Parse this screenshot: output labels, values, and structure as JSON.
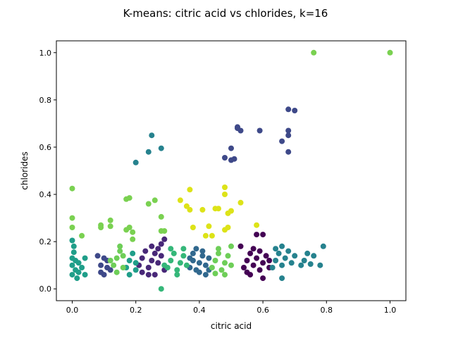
{
  "chart_data": {
    "type": "scatter",
    "title": "K-means: citric acid vs chlorides, k=16",
    "xlabel": "citric acid",
    "ylabel": "chlorides",
    "xlim": [
      -0.05,
      1.05
    ],
    "ylim": [
      -0.05,
      1.05
    ],
    "xticks": [
      "0.0",
      "0.2",
      "0.4",
      "0.6",
      "0.8",
      "1.0"
    ],
    "yticks": [
      "0.0",
      "0.2",
      "0.4",
      "0.6",
      "0.8",
      "1.0"
    ],
    "grid": false,
    "legend": "none",
    "series": [
      {
        "color": "#440154",
        "points": [
          [
            0.54,
            0.09
          ],
          [
            0.55,
            0.12
          ],
          [
            0.56,
            0.15
          ],
          [
            0.57,
            0.1
          ],
          [
            0.58,
            0.13
          ],
          [
            0.59,
            0.08
          ],
          [
            0.6,
            0.11
          ],
          [
            0.61,
            0.14
          ],
          [
            0.55,
            0.07
          ],
          [
            0.57,
            0.17
          ],
          [
            0.59,
            0.16
          ],
          [
            0.53,
            0.18
          ],
          [
            0.58,
            0.23
          ],
          [
            0.6,
            0.23
          ],
          [
            0.6,
            0.045
          ],
          [
            0.62,
            0.09
          ],
          [
            0.62,
            0.12
          ],
          [
            0.56,
            0.06
          ]
        ]
      },
      {
        "color": "#482878",
        "points": [
          [
            0.21,
            0.1
          ],
          [
            0.22,
            0.13
          ],
          [
            0.23,
            0.16
          ],
          [
            0.24,
            0.09
          ],
          [
            0.25,
            0.12
          ],
          [
            0.26,
            0.15
          ],
          [
            0.27,
            0.11
          ],
          [
            0.28,
            0.14
          ],
          [
            0.29,
            0.08
          ],
          [
            0.22,
            0.07
          ],
          [
            0.24,
            0.06
          ],
          [
            0.26,
            0.06
          ],
          [
            0.27,
            0.17
          ],
          [
            0.25,
            0.18
          ],
          [
            0.29,
            0.21
          ],
          [
            0.28,
            0.19
          ]
        ]
      },
      {
        "color": "#3e4989",
        "points": [
          [
            0.52,
            0.68
          ],
          [
            0.53,
            0.67
          ],
          [
            0.59,
            0.67
          ],
          [
            0.68,
            0.76
          ],
          [
            0.7,
            0.755
          ],
          [
            0.68,
            0.67
          ],
          [
            0.68,
            0.65
          ],
          [
            0.66,
            0.625
          ],
          [
            0.68,
            0.58
          ],
          [
            0.5,
            0.595
          ],
          [
            0.48,
            0.555
          ],
          [
            0.5,
            0.545
          ],
          [
            0.51,
            0.55
          ],
          [
            0.52,
            0.685
          ],
          [
            0.09,
            0.07
          ],
          [
            0.09,
            0.1
          ],
          [
            0.1,
            0.13
          ],
          [
            0.11,
            0.09
          ],
          [
            0.11,
            0.12
          ],
          [
            0.12,
            0.08
          ],
          [
            0.08,
            0.14
          ],
          [
            0.1,
            0.06
          ]
        ]
      },
      {
        "color": "#31688e",
        "points": [
          [
            0.37,
            0.09
          ],
          [
            0.38,
            0.12
          ],
          [
            0.39,
            0.08
          ],
          [
            0.4,
            0.11
          ],
          [
            0.41,
            0.14
          ],
          [
            0.42,
            0.1
          ],
          [
            0.43,
            0.13
          ],
          [
            0.38,
            0.15
          ],
          [
            0.4,
            0.07
          ],
          [
            0.42,
            0.06
          ],
          [
            0.41,
            0.16
          ],
          [
            0.39,
            0.17
          ],
          [
            0.43,
            0.08
          ],
          [
            0.37,
            0.13
          ]
        ]
      },
      {
        "color": "#26828e",
        "points": [
          [
            0.25,
            0.65
          ],
          [
            0.28,
            0.595
          ],
          [
            0.24,
            0.58
          ],
          [
            0.2,
            0.535
          ],
          [
            0.63,
            0.09
          ],
          [
            0.64,
            0.12
          ],
          [
            0.65,
            0.15
          ],
          [
            0.66,
            0.1
          ],
          [
            0.67,
            0.13
          ],
          [
            0.68,
            0.16
          ],
          [
            0.69,
            0.11
          ],
          [
            0.7,
            0.14
          ],
          [
            0.72,
            0.1
          ],
          [
            0.73,
            0.12
          ],
          [
            0.74,
            0.15
          ],
          [
            0.75,
            0.105
          ],
          [
            0.76,
            0.14
          ],
          [
            0.78,
            0.1
          ],
          [
            0.79,
            0.18
          ],
          [
            0.66,
            0.045
          ],
          [
            0.66,
            0.18
          ],
          [
            0.64,
            0.17
          ]
        ]
      },
      {
        "color": "#1f9e89",
        "points": [
          [
            0.0,
            0.1
          ],
          [
            0.0,
            0.06
          ],
          [
            0.0,
            0.13
          ],
          [
            0.01,
            0.08
          ],
          [
            0.01,
            0.12
          ],
          [
            0.02,
            0.07
          ],
          [
            0.02,
            0.11
          ],
          [
            0.03,
            0.09
          ],
          [
            0.04,
            0.13
          ],
          [
            0.04,
            0.06
          ],
          [
            0.005,
            0.155
          ],
          [
            0.0,
            0.205
          ],
          [
            0.005,
            0.18
          ],
          [
            0.015,
            0.045
          ],
          [
            0.17,
            0.09
          ],
          [
            0.18,
            0.12
          ],
          [
            0.19,
            0.15
          ],
          [
            0.2,
            0.08
          ],
          [
            0.2,
            0.11
          ],
          [
            0.18,
            0.06
          ]
        ]
      },
      {
        "color": "#35b779",
        "points": [
          [
            0.3,
            0.09
          ],
          [
            0.31,
            0.12
          ],
          [
            0.32,
            0.15
          ],
          [
            0.33,
            0.08
          ],
          [
            0.34,
            0.11
          ],
          [
            0.35,
            0.14
          ],
          [
            0.36,
            0.1
          ],
          [
            0.31,
            0.17
          ],
          [
            0.33,
            0.06
          ],
          [
            0.28,
            0.0
          ],
          [
            0.29,
            0.1
          ],
          [
            0.35,
            0.17
          ]
        ]
      },
      {
        "color": "#6ece58",
        "points": [
          [
            0.13,
            0.1
          ],
          [
            0.14,
            0.13
          ],
          [
            0.15,
            0.16
          ],
          [
            0.16,
            0.09
          ],
          [
            0.14,
            0.07
          ],
          [
            0.12,
            0.12
          ],
          [
            0.16,
            0.14
          ],
          [
            0.15,
            0.18
          ],
          [
            0.44,
            0.09
          ],
          [
            0.45,
            0.12
          ],
          [
            0.46,
            0.15
          ],
          [
            0.47,
            0.08
          ],
          [
            0.48,
            0.11
          ],
          [
            0.49,
            0.14
          ],
          [
            0.5,
            0.1
          ],
          [
            0.46,
            0.17
          ],
          [
            0.48,
            0.06
          ],
          [
            0.5,
            0.18
          ],
          [
            0.45,
            0.065
          ]
        ]
      },
      {
        "color": "#7ad151",
        "points": [
          [
            0.76,
            1.0
          ],
          [
            1.0,
            1.0
          ],
          [
            0.0,
            0.425
          ],
          [
            0.0,
            0.3
          ],
          [
            0.0,
            0.26
          ],
          [
            0.03,
            0.225
          ],
          [
            0.09,
            0.27
          ],
          [
            0.09,
            0.26
          ],
          [
            0.12,
            0.29
          ],
          [
            0.12,
            0.265
          ],
          [
            0.17,
            0.38
          ],
          [
            0.18,
            0.385
          ],
          [
            0.17,
            0.25
          ],
          [
            0.18,
            0.26
          ],
          [
            0.19,
            0.24
          ],
          [
            0.19,
            0.21
          ],
          [
            0.24,
            0.36
          ],
          [
            0.26,
            0.375
          ],
          [
            0.28,
            0.305
          ],
          [
            0.29,
            0.245
          ],
          [
            0.28,
            0.245
          ]
        ]
      },
      {
        "color": "#dde318",
        "points": [
          [
            0.37,
            0.42
          ],
          [
            0.36,
            0.35
          ],
          [
            0.37,
            0.335
          ],
          [
            0.34,
            0.375
          ],
          [
            0.38,
            0.26
          ],
          [
            0.41,
            0.335
          ],
          [
            0.42,
            0.225
          ],
          [
            0.43,
            0.265
          ],
          [
            0.44,
            0.225
          ],
          [
            0.45,
            0.34
          ],
          [
            0.46,
            0.34
          ],
          [
            0.48,
            0.43
          ],
          [
            0.48,
            0.4
          ],
          [
            0.49,
            0.32
          ],
          [
            0.5,
            0.33
          ],
          [
            0.53,
            0.365
          ],
          [
            0.48,
            0.25
          ],
          [
            0.49,
            0.26
          ],
          [
            0.58,
            0.27
          ]
        ]
      }
    ]
  }
}
